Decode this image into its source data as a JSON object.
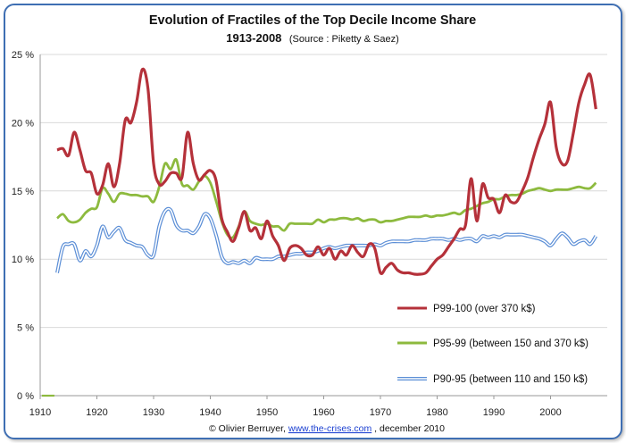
{
  "chart_data": {
    "type": "line",
    "title": "Evolution of Fractiles of the Top Decile Income Share",
    "subtitle_main": "1913-2008",
    "subtitle_source": "(Source : Piketty & Saez)",
    "xlabel": "",
    "ylabel": "",
    "xlim": [
      1910,
      2010
    ],
    "ylim": [
      0,
      25
    ],
    "x_ticks": [
      "1910",
      "1920",
      "1930",
      "1940",
      "1950",
      "1960",
      "1970",
      "1980",
      "1990",
      "2000"
    ],
    "y_ticks": [
      "0 %",
      "5 %",
      "10 %",
      "15 %",
      "20 %",
      "25 %"
    ],
    "grid": "horizontal",
    "legend": "bottom-right",
    "series": [
      {
        "name": "P99-100 (over 370 k$)",
        "color": "#b5313a",
        "points": [
          [
            1913,
            18.0
          ],
          [
            1914,
            18.1
          ],
          [
            1915,
            17.6
          ],
          [
            1916,
            19.3
          ],
          [
            1917,
            18.0
          ],
          [
            1918,
            16.5
          ],
          [
            1919,
            16.3
          ],
          [
            1920,
            14.8
          ],
          [
            1921,
            15.4
          ],
          [
            1922,
            17.0
          ],
          [
            1923,
            15.3
          ],
          [
            1924,
            17.0
          ],
          [
            1925,
            20.2
          ],
          [
            1926,
            20.0
          ],
          [
            1927,
            21.5
          ],
          [
            1928,
            23.9
          ],
          [
            1929,
            22.5
          ],
          [
            1930,
            17.0
          ],
          [
            1931,
            15.5
          ],
          [
            1932,
            15.7
          ],
          [
            1933,
            16.3
          ],
          [
            1934,
            16.3
          ],
          [
            1935,
            16.0
          ],
          [
            1936,
            19.3
          ],
          [
            1937,
            17.0
          ],
          [
            1938,
            15.8
          ],
          [
            1939,
            16.2
          ],
          [
            1940,
            16.5
          ],
          [
            1941,
            15.8
          ],
          [
            1942,
            13.0
          ],
          [
            1943,
            12.0
          ],
          [
            1944,
            11.3
          ],
          [
            1945,
            12.3
          ],
          [
            1946,
            13.5
          ],
          [
            1947,
            12.1
          ],
          [
            1948,
            12.3
          ],
          [
            1949,
            11.5
          ],
          [
            1950,
            12.8
          ],
          [
            1951,
            11.7
          ],
          [
            1952,
            11.0
          ],
          [
            1953,
            9.9
          ],
          [
            1954,
            10.8
          ],
          [
            1955,
            11.0
          ],
          [
            1956,
            10.8
          ],
          [
            1957,
            10.3
          ],
          [
            1958,
            10.3
          ],
          [
            1959,
            10.9
          ],
          [
            1960,
            10.3
          ],
          [
            1961,
            10.8
          ],
          [
            1962,
            10.0
          ],
          [
            1963,
            10.6
          ],
          [
            1964,
            10.3
          ],
          [
            1965,
            11.0
          ],
          [
            1966,
            10.5
          ],
          [
            1967,
            10.2
          ],
          [
            1968,
            11.1
          ],
          [
            1969,
            10.8
          ],
          [
            1970,
            9.0
          ],
          [
            1971,
            9.4
          ],
          [
            1972,
            9.7
          ],
          [
            1973,
            9.2
          ],
          [
            1974,
            9.0
          ],
          [
            1975,
            9.0
          ],
          [
            1976,
            8.9
          ],
          [
            1977,
            8.9
          ],
          [
            1978,
            9.0
          ],
          [
            1979,
            9.5
          ],
          [
            1980,
            10.0
          ],
          [
            1981,
            10.3
          ],
          [
            1982,
            10.9
          ],
          [
            1983,
            11.5
          ],
          [
            1984,
            12.2
          ],
          [
            1985,
            12.5
          ],
          [
            1986,
            15.9
          ],
          [
            1987,
            12.8
          ],
          [
            1988,
            15.5
          ],
          [
            1989,
            14.5
          ],
          [
            1990,
            14.4
          ],
          [
            1991,
            13.4
          ],
          [
            1992,
            14.7
          ],
          [
            1993,
            14.2
          ],
          [
            1994,
            14.2
          ],
          [
            1995,
            15.0
          ],
          [
            1996,
            16.0
          ],
          [
            1997,
            17.5
          ],
          [
            1998,
            18.8
          ],
          [
            1999,
            19.9
          ],
          [
            2000,
            21.5
          ],
          [
            2001,
            18.2
          ],
          [
            2002,
            17.0
          ],
          [
            2003,
            17.2
          ],
          [
            2004,
            19.2
          ],
          [
            2005,
            21.5
          ],
          [
            2006,
            22.8
          ],
          [
            2007,
            23.5
          ],
          [
            2008,
            21.0
          ]
        ]
      },
      {
        "name": "P95-99 (between 150 and 370 k$)",
        "color": "#8dba3e",
        "points": [
          [
            1913,
            13.0
          ],
          [
            1914,
            13.3
          ],
          [
            1915,
            12.8
          ],
          [
            1916,
            12.7
          ],
          [
            1917,
            12.9
          ],
          [
            1918,
            13.4
          ],
          [
            1919,
            13.7
          ],
          [
            1920,
            13.8
          ],
          [
            1921,
            15.2
          ],
          [
            1922,
            14.8
          ],
          [
            1923,
            14.2
          ],
          [
            1924,
            14.8
          ],
          [
            1925,
            14.8
          ],
          [
            1926,
            14.7
          ],
          [
            1927,
            14.7
          ],
          [
            1928,
            14.6
          ],
          [
            1929,
            14.6
          ],
          [
            1930,
            14.2
          ],
          [
            1931,
            15.3
          ],
          [
            1932,
            17.0
          ],
          [
            1933,
            16.6
          ],
          [
            1934,
            17.3
          ],
          [
            1935,
            15.5
          ],
          [
            1936,
            15.4
          ],
          [
            1937,
            15.1
          ],
          [
            1938,
            15.7
          ],
          [
            1939,
            16.1
          ],
          [
            1940,
            15.6
          ],
          [
            1941,
            14.3
          ],
          [
            1942,
            12.8
          ],
          [
            1943,
            11.8
          ],
          [
            1944,
            11.6
          ],
          [
            1945,
            12.4
          ],
          [
            1946,
            13.5
          ],
          [
            1947,
            12.8
          ],
          [
            1948,
            12.6
          ],
          [
            1949,
            12.5
          ],
          [
            1950,
            12.6
          ],
          [
            1951,
            12.4
          ],
          [
            1952,
            12.4
          ],
          [
            1953,
            12.1
          ],
          [
            1954,
            12.6
          ],
          [
            1955,
            12.6
          ],
          [
            1956,
            12.6
          ],
          [
            1957,
            12.6
          ],
          [
            1958,
            12.6
          ],
          [
            1959,
            12.9
          ],
          [
            1960,
            12.7
          ],
          [
            1961,
            12.9
          ],
          [
            1962,
            12.9
          ],
          [
            1963,
            13.0
          ],
          [
            1964,
            13.0
          ],
          [
            1965,
            12.9
          ],
          [
            1966,
            13.0
          ],
          [
            1967,
            12.8
          ],
          [
            1968,
            12.9
          ],
          [
            1969,
            12.9
          ],
          [
            1970,
            12.7
          ],
          [
            1971,
            12.8
          ],
          [
            1972,
            12.8
          ],
          [
            1973,
            12.9
          ],
          [
            1974,
            13.0
          ],
          [
            1975,
            13.1
          ],
          [
            1976,
            13.1
          ],
          [
            1977,
            13.1
          ],
          [
            1978,
            13.2
          ],
          [
            1979,
            13.1
          ],
          [
            1980,
            13.2
          ],
          [
            1981,
            13.2
          ],
          [
            1982,
            13.3
          ],
          [
            1983,
            13.4
          ],
          [
            1984,
            13.3
          ],
          [
            1985,
            13.6
          ],
          [
            1986,
            13.7
          ],
          [
            1987,
            13.9
          ],
          [
            1988,
            14.1
          ],
          [
            1989,
            14.2
          ],
          [
            1990,
            14.4
          ],
          [
            1991,
            14.4
          ],
          [
            1992,
            14.6
          ],
          [
            1993,
            14.7
          ],
          [
            1994,
            14.7
          ],
          [
            1995,
            14.8
          ],
          [
            1996,
            15.0
          ],
          [
            1997,
            15.1
          ],
          [
            1998,
            15.2
          ],
          [
            1999,
            15.1
          ],
          [
            2000,
            15.0
          ],
          [
            2001,
            15.1
          ],
          [
            2002,
            15.1
          ],
          [
            2003,
            15.1
          ],
          [
            2004,
            15.2
          ],
          [
            2005,
            15.3
          ],
          [
            2006,
            15.2
          ],
          [
            2007,
            15.2
          ],
          [
            2008,
            15.6
          ]
        ]
      },
      {
        "name": "P90-95 (between 110 and 150 k$)",
        "color": "#5b8ed6",
        "points": [
          [
            1913,
            9.0
          ],
          [
            1914,
            10.9
          ],
          [
            1915,
            11.1
          ],
          [
            1916,
            11.1
          ],
          [
            1917,
            9.9
          ],
          [
            1918,
            10.6
          ],
          [
            1919,
            10.2
          ],
          [
            1920,
            11.0
          ],
          [
            1921,
            12.4
          ],
          [
            1922,
            11.6
          ],
          [
            1923,
            12.0
          ],
          [
            1924,
            12.3
          ],
          [
            1925,
            11.4
          ],
          [
            1926,
            11.2
          ],
          [
            1927,
            11.0
          ],
          [
            1928,
            10.9
          ],
          [
            1929,
            10.3
          ],
          [
            1930,
            10.3
          ],
          [
            1931,
            12.4
          ],
          [
            1932,
            13.5
          ],
          [
            1933,
            13.6
          ],
          [
            1934,
            12.5
          ],
          [
            1935,
            12.1
          ],
          [
            1936,
            12.1
          ],
          [
            1937,
            11.9
          ],
          [
            1938,
            12.4
          ],
          [
            1939,
            13.3
          ],
          [
            1940,
            13.0
          ],
          [
            1941,
            11.8
          ],
          [
            1942,
            10.2
          ],
          [
            1943,
            9.7
          ],
          [
            1944,
            9.8
          ],
          [
            1945,
            9.7
          ],
          [
            1946,
            9.9
          ],
          [
            1947,
            9.7
          ],
          [
            1948,
            10.1
          ],
          [
            1949,
            10.0
          ],
          [
            1950,
            10.0
          ],
          [
            1951,
            10.0
          ],
          [
            1952,
            10.2
          ],
          [
            1953,
            10.2
          ],
          [
            1954,
            10.3
          ],
          [
            1955,
            10.4
          ],
          [
            1956,
            10.4
          ],
          [
            1957,
            10.5
          ],
          [
            1958,
            10.5
          ],
          [
            1959,
            10.6
          ],
          [
            1960,
            10.8
          ],
          [
            1961,
            10.9
          ],
          [
            1962,
            10.8
          ],
          [
            1963,
            10.9
          ],
          [
            1964,
            11.0
          ],
          [
            1965,
            11.0
          ],
          [
            1966,
            11.0
          ],
          [
            1967,
            11.0
          ],
          [
            1968,
            11.0
          ],
          [
            1969,
            11.1
          ],
          [
            1970,
            11.0
          ],
          [
            1971,
            11.2
          ],
          [
            1972,
            11.3
          ],
          [
            1973,
            11.3
          ],
          [
            1974,
            11.3
          ],
          [
            1975,
            11.3
          ],
          [
            1976,
            11.4
          ],
          [
            1977,
            11.4
          ],
          [
            1978,
            11.4
          ],
          [
            1979,
            11.5
          ],
          [
            1980,
            11.5
          ],
          [
            1981,
            11.5
          ],
          [
            1982,
            11.4
          ],
          [
            1983,
            11.5
          ],
          [
            1984,
            11.4
          ],
          [
            1985,
            11.5
          ],
          [
            1986,
            11.5
          ],
          [
            1987,
            11.3
          ],
          [
            1988,
            11.7
          ],
          [
            1989,
            11.6
          ],
          [
            1990,
            11.7
          ],
          [
            1991,
            11.6
          ],
          [
            1992,
            11.8
          ],
          [
            1993,
            11.8
          ],
          [
            1994,
            11.8
          ],
          [
            1995,
            11.8
          ],
          [
            1996,
            11.7
          ],
          [
            1997,
            11.6
          ],
          [
            1998,
            11.5
          ],
          [
            1999,
            11.3
          ],
          [
            2000,
            11.0
          ],
          [
            2001,
            11.5
          ],
          [
            2002,
            11.9
          ],
          [
            2003,
            11.6
          ],
          [
            2004,
            11.1
          ],
          [
            2005,
            11.3
          ],
          [
            2006,
            11.4
          ],
          [
            2007,
            11.1
          ],
          [
            2008,
            11.7
          ]
        ]
      }
    ],
    "stray_segment": {
      "color": "#8dba3e",
      "points": [
        [
          1910.3,
          0
        ],
        [
          1912.5,
          0
        ]
      ]
    }
  },
  "footer": {
    "prefix": "© Olivier Berruyer, ",
    "link_text": "www.the-crises.com",
    "suffix": ", december 2010"
  }
}
